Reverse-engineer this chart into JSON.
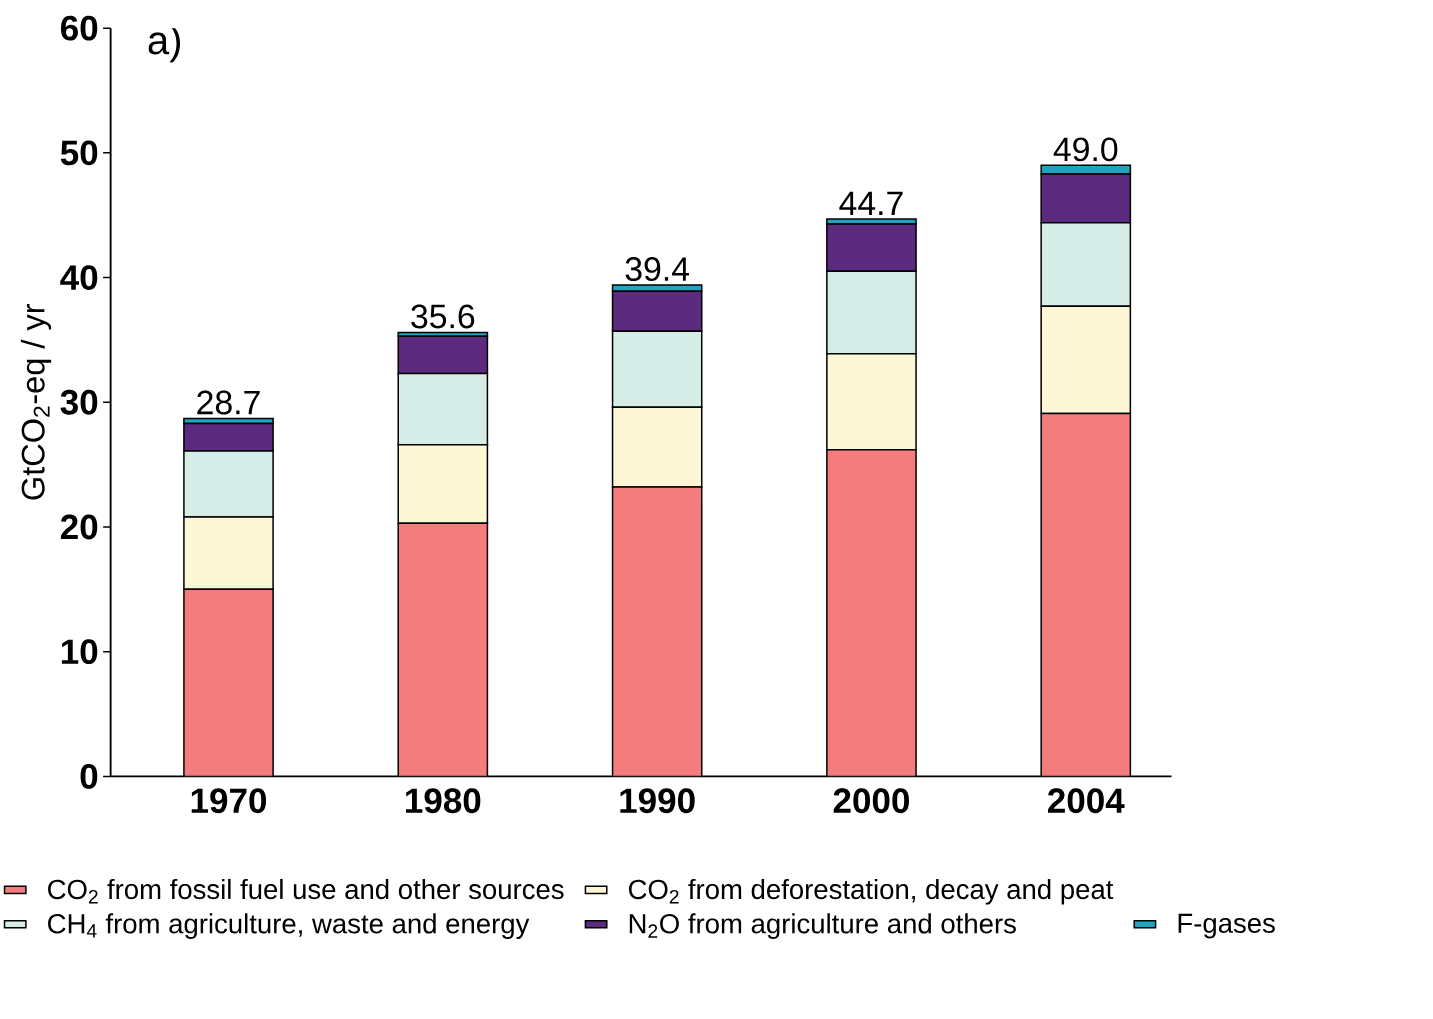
{
  "chart_data": {
    "type": "bar",
    "stacked": true,
    "ylabel": "GtCO$_{2}$-eq / yr",
    "categories": [
      "1970",
      "1980",
      "1990",
      "2000",
      "2004"
    ],
    "series": [
      {
        "name": "CO$_{2}$ from fossil fuel use and other sources",
        "color": "#f47c7c",
        "values": [
          15.0,
          20.3,
          23.2,
          26.2,
          29.1
        ]
      },
      {
        "name": "CO$_{2}$ from deforestation, decay and peat",
        "color": "#fdf7d6",
        "values": [
          5.8,
          6.3,
          6.4,
          7.7,
          8.6
        ]
      },
      {
        "name": "CH$_{4}$ from agriculture, waste and energy",
        "color": "#d5ede6",
        "values": [
          5.3,
          5.7,
          6.1,
          6.6,
          6.7
        ]
      },
      {
        "name": "N$_{2}$O from agriculture and others",
        "color": "#5c2a7e",
        "values": [
          2.2,
          3.0,
          3.2,
          3.8,
          3.9
        ]
      },
      {
        "name": "F-gases",
        "color": "#1fa5c0",
        "values": [
          0.4,
          0.3,
          0.5,
          0.4,
          0.7
        ]
      }
    ],
    "totals": [
      "28.7",
      "35.6",
      "39.4",
      "44.7",
      "49.0"
    ],
    "annotations": [
      "a)"
    ],
    "ylim": [
      0,
      60
    ],
    "yticks": [
      0,
      10,
      20,
      30,
      40,
      50,
      60
    ],
    "grid": false,
    "legend": "bottom"
  }
}
